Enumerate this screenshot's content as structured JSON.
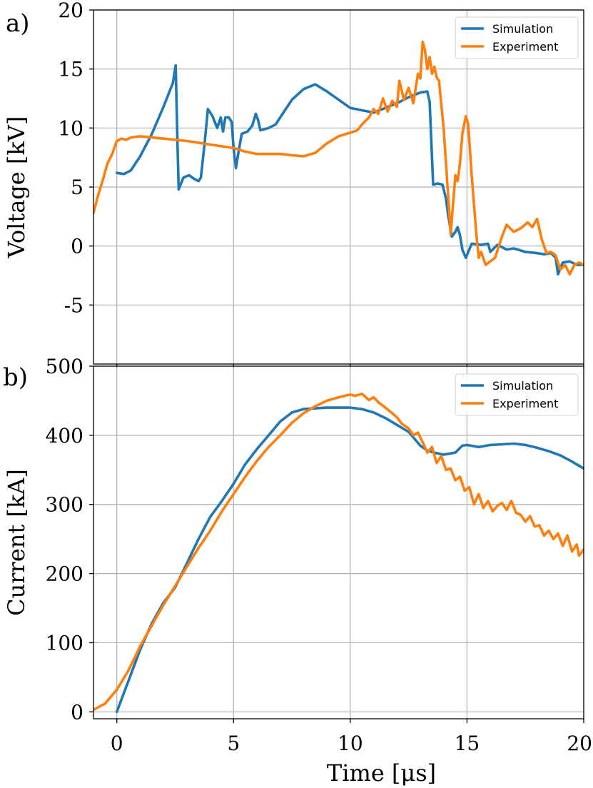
{
  "chart_data": [
    {
      "type": "line",
      "panel_label": "a)",
      "xlabel": "",
      "ylabel": "Voltage [kV]",
      "xlim": [
        -1,
        20
      ],
      "ylim": [
        -10,
        20
      ],
      "xticks": [
        0,
        5,
        10,
        15,
        20
      ],
      "yticks": [
        -5,
        0,
        5,
        10,
        15,
        20
      ],
      "ytick_labels": [
        "-5",
        "0",
        "5",
        "10",
        "15",
        "20"
      ],
      "grid": true,
      "legend_position": "top-right",
      "series": [
        {
          "name": "Simulation",
          "color": "#1f77b4",
          "points": [
            [
              0,
              6.2
            ],
            [
              0.3,
              6.1
            ],
            [
              0.6,
              6.4
            ],
            [
              1.0,
              7.6
            ],
            [
              1.5,
              9.5
            ],
            [
              2.0,
              11.8
            ],
            [
              2.4,
              13.8
            ],
            [
              2.52,
              15.3
            ],
            [
              2.6,
              8.5
            ],
            [
              2.65,
              4.8
            ],
            [
              2.85,
              5.8
            ],
            [
              3.1,
              6.0
            ],
            [
              3.3,
              5.7
            ],
            [
              3.5,
              5.5
            ],
            [
              3.6,
              5.8
            ],
            [
              3.75,
              8.5
            ],
            [
              3.9,
              11.6
            ],
            [
              4.0,
              11.3
            ],
            [
              4.1,
              11.0
            ],
            [
              4.3,
              10.0
            ],
            [
              4.45,
              10.9
            ],
            [
              4.55,
              9.7
            ],
            [
              4.65,
              10.9
            ],
            [
              4.8,
              10.9
            ],
            [
              4.92,
              10.5
            ],
            [
              5.0,
              8.3
            ],
            [
              5.1,
              6.6
            ],
            [
              5.2,
              7.8
            ],
            [
              5.35,
              9.5
            ],
            [
              5.6,
              9.7
            ],
            [
              5.8,
              10.2
            ],
            [
              5.95,
              11.2
            ],
            [
              6.05,
              10.7
            ],
            [
              6.15,
              9.8
            ],
            [
              6.5,
              10.0
            ],
            [
              6.8,
              10.3
            ],
            [
              7.1,
              11.2
            ],
            [
              7.5,
              12.4
            ],
            [
              8.0,
              13.3
            ],
            [
              8.5,
              13.7
            ],
            [
              9.0,
              13.1
            ],
            [
              9.5,
              12.4
            ],
            [
              10.0,
              11.7
            ],
            [
              10.5,
              11.5
            ],
            [
              11.0,
              11.3
            ],
            [
              11.5,
              11.7
            ],
            [
              12.0,
              12.1
            ],
            [
              12.5,
              12.6
            ],
            [
              13.0,
              13.0
            ],
            [
              13.3,
              13.1
            ],
            [
              13.4,
              12.2
            ],
            [
              13.55,
              5.2
            ],
            [
              13.75,
              5.3
            ],
            [
              13.95,
              5.2
            ],
            [
              14.1,
              4.0
            ],
            [
              14.2,
              2.5
            ],
            [
              14.35,
              0.8
            ],
            [
              14.5,
              1.2
            ],
            [
              14.6,
              1.6
            ],
            [
              14.7,
              0.9
            ],
            [
              14.8,
              -0.3
            ],
            [
              14.95,
              -1.0
            ],
            [
              15.2,
              0.2
            ],
            [
              15.6,
              0.1
            ],
            [
              15.9,
              0.2
            ],
            [
              16.0,
              -0.5
            ],
            [
              16.3,
              0.1
            ],
            [
              16.7,
              -0.3
            ],
            [
              17.0,
              -0.2
            ],
            [
              17.5,
              -0.5
            ],
            [
              18.0,
              -0.6
            ],
            [
              18.3,
              -0.7
            ],
            [
              18.6,
              -0.6
            ],
            [
              18.8,
              -1.0
            ],
            [
              18.9,
              -2.4
            ],
            [
              19.1,
              -1.4
            ],
            [
              19.4,
              -1.3
            ],
            [
              19.7,
              -1.6
            ],
            [
              20.0,
              -1.6
            ]
          ]
        },
        {
          "name": "Experiment",
          "color": "#ff7f0e",
          "points": [
            [
              -1.0,
              2.8
            ],
            [
              -0.8,
              4.3
            ],
            [
              -0.6,
              5.6
            ],
            [
              -0.4,
              7.0
            ],
            [
              -0.2,
              7.8
            ],
            [
              0,
              8.9
            ],
            [
              0.2,
              9.1
            ],
            [
              0.4,
              9.0
            ],
            [
              0.6,
              9.2
            ],
            [
              1.0,
              9.3
            ],
            [
              2.0,
              9.1
            ],
            [
              3.0,
              8.9
            ],
            [
              4.0,
              8.6
            ],
            [
              5.0,
              8.3
            ],
            [
              5.5,
              8.0
            ],
            [
              6.0,
              7.8
            ],
            [
              7.0,
              7.8
            ],
            [
              7.5,
              7.7
            ],
            [
              8.0,
              7.6
            ],
            [
              8.5,
              7.9
            ],
            [
              9.0,
              8.7
            ],
            [
              9.5,
              9.3
            ],
            [
              10.0,
              9.6
            ],
            [
              10.3,
              9.8
            ],
            [
              10.5,
              10.3
            ],
            [
              10.8,
              10.9
            ],
            [
              11.0,
              11.6
            ],
            [
              11.2,
              11.2
            ],
            [
              11.4,
              12.5
            ],
            [
              11.6,
              11.4
            ],
            [
              11.8,
              12.3
            ],
            [
              12.0,
              11.8
            ],
            [
              12.1,
              14.0
            ],
            [
              12.3,
              12.4
            ],
            [
              12.5,
              13.4
            ],
            [
              12.7,
              12.1
            ],
            [
              12.9,
              14.6
            ],
            [
              13.0,
              14.2
            ],
            [
              13.1,
              17.3
            ],
            [
              13.2,
              16.6
            ],
            [
              13.3,
              15.0
            ],
            [
              13.4,
              16.0
            ],
            [
              13.5,
              14.6
            ],
            [
              13.6,
              15.2
            ],
            [
              13.7,
              14.3
            ],
            [
              13.8,
              14.0
            ],
            [
              13.9,
              12.0
            ],
            [
              14.0,
              10.0
            ],
            [
              14.1,
              7.0
            ],
            [
              14.2,
              4.0
            ],
            [
              14.3,
              1.0
            ],
            [
              14.4,
              3.5
            ],
            [
              14.5,
              6.0
            ],
            [
              14.6,
              5.5
            ],
            [
              14.7,
              7.0
            ],
            [
              14.8,
              9.5
            ],
            [
              14.95,
              11.0
            ],
            [
              15.05,
              10.3
            ],
            [
              15.2,
              6.0
            ],
            [
              15.4,
              1.0
            ],
            [
              15.5,
              -1.0
            ],
            [
              15.6,
              -0.5
            ],
            [
              15.8,
              -1.6
            ],
            [
              16.0,
              -1.3
            ],
            [
              16.2,
              -1.0
            ],
            [
              16.5,
              0.8
            ],
            [
              16.7,
              1.8
            ],
            [
              17.0,
              1.2
            ],
            [
              17.3,
              1.5
            ],
            [
              17.6,
              2.0
            ],
            [
              17.8,
              1.6
            ],
            [
              18.0,
              2.3
            ],
            [
              18.2,
              0.6
            ],
            [
              18.4,
              -0.6
            ],
            [
              18.6,
              -0.5
            ],
            [
              18.8,
              -0.8
            ],
            [
              19.0,
              -2.0
            ],
            [
              19.2,
              -1.6
            ],
            [
              19.4,
              -2.4
            ],
            [
              19.6,
              -1.6
            ],
            [
              19.8,
              -1.4
            ],
            [
              20.0,
              -1.6
            ]
          ]
        }
      ]
    },
    {
      "type": "line",
      "panel_label": "b)",
      "xlabel": "Time [μs]",
      "ylabel": "Current [kA]",
      "xlim": [
        -1,
        20
      ],
      "ylim": [
        -10,
        500
      ],
      "xticks": [
        0,
        5,
        10,
        15,
        20
      ],
      "xtick_labels": [
        "0",
        "5",
        "10",
        "15",
        "20"
      ],
      "yticks": [
        0,
        100,
        200,
        300,
        400,
        500
      ],
      "ytick_labels": [
        "0",
        "100",
        "200",
        "300",
        "400",
        "500"
      ],
      "grid": true,
      "legend_position": "top-right",
      "series": [
        {
          "name": "Simulation",
          "color": "#1f77b4",
          "points": [
            [
              0,
              0
            ],
            [
              0.5,
              45
            ],
            [
              1,
              90
            ],
            [
              1.5,
              128
            ],
            [
              2,
              158
            ],
            [
              2.5,
              180
            ],
            [
              3,
              215
            ],
            [
              3.5,
              250
            ],
            [
              4,
              282
            ],
            [
              4.5,
              305
            ],
            [
              5,
              330
            ],
            [
              5.5,
              358
            ],
            [
              6,
              380
            ],
            [
              6.5,
              400
            ],
            [
              7,
              420
            ],
            [
              7.5,
              433
            ],
            [
              8,
              438
            ],
            [
              9,
              440
            ],
            [
              10,
              440
            ],
            [
              10.5,
              438
            ],
            [
              11,
              433
            ],
            [
              11.5,
              425
            ],
            [
              12,
              415
            ],
            [
              12.5,
              405
            ],
            [
              13,
              385
            ],
            [
              13.3,
              378
            ],
            [
              13.6,
              375
            ],
            [
              14,
              372
            ],
            [
              14.5,
              375
            ],
            [
              14.8,
              385
            ],
            [
              15,
              386
            ],
            [
              15.5,
              383
            ],
            [
              16,
              386
            ],
            [
              16.5,
              387
            ],
            [
              17,
              388
            ],
            [
              17.5,
              386
            ],
            [
              18,
              382
            ],
            [
              18.5,
              377
            ],
            [
              19,
              371
            ],
            [
              19.5,
              362
            ],
            [
              20,
              352
            ]
          ]
        },
        {
          "name": "Experiment",
          "color": "#ff7f0e",
          "points": [
            [
              -1,
              3
            ],
            [
              -0.5,
              12
            ],
            [
              0,
              32
            ],
            [
              0.5,
              60
            ],
            [
              1,
              95
            ],
            [
              1.5,
              125
            ],
            [
              2,
              155
            ],
            [
              2.5,
              182
            ],
            [
              3,
              210
            ],
            [
              3.5,
              237
            ],
            [
              4,
              262
            ],
            [
              4.5,
              290
            ],
            [
              5,
              315
            ],
            [
              5.5,
              340
            ],
            [
              6,
              363
            ],
            [
              6.5,
              383
            ],
            [
              7,
              400
            ],
            [
              7.5,
              418
            ],
            [
              8,
              432
            ],
            [
              8.5,
              442
            ],
            [
              9,
              450
            ],
            [
              9.5,
              455
            ],
            [
              10,
              459
            ],
            [
              10.2,
              457
            ],
            [
              10.5,
              460
            ],
            [
              10.8,
              451
            ],
            [
              11,
              455
            ],
            [
              11.2,
              448
            ],
            [
              11.5,
              440
            ],
            [
              11.8,
              432
            ],
            [
              12,
              426
            ],
            [
              12.2,
              417
            ],
            [
              12.5,
              410
            ],
            [
              12.7,
              400
            ],
            [
              12.9,
              404
            ],
            [
              13.1,
              390
            ],
            [
              13.3,
              375
            ],
            [
              13.5,
              383
            ],
            [
              13.7,
              360
            ],
            [
              13.9,
              370
            ],
            [
              14.1,
              350
            ],
            [
              14.3,
              352
            ],
            [
              14.5,
              335
            ],
            [
              14.7,
              340
            ],
            [
              14.9,
              320
            ],
            [
              15.1,
              325
            ],
            [
              15.3,
              300
            ],
            [
              15.5,
              315
            ],
            [
              15.7,
              295
            ],
            [
              15.9,
              305
            ],
            [
              16.1,
              290
            ],
            [
              16.3,
              298
            ],
            [
              16.5,
              302
            ],
            [
              16.7,
              292
            ],
            [
              16.9,
              305
            ],
            [
              17.1,
              288
            ],
            [
              17.3,
              285
            ],
            [
              17.5,
              275
            ],
            [
              17.7,
              283
            ],
            [
              17.9,
              268
            ],
            [
              18.1,
              270
            ],
            [
              18.3,
              255
            ],
            [
              18.5,
              262
            ],
            [
              18.7,
              250
            ],
            [
              18.9,
              258
            ],
            [
              19.1,
              240
            ],
            [
              19.3,
              255
            ],
            [
              19.5,
              232
            ],
            [
              19.7,
              242
            ],
            [
              19.8,
              226
            ],
            [
              20,
              235
            ]
          ]
        }
      ]
    }
  ]
}
